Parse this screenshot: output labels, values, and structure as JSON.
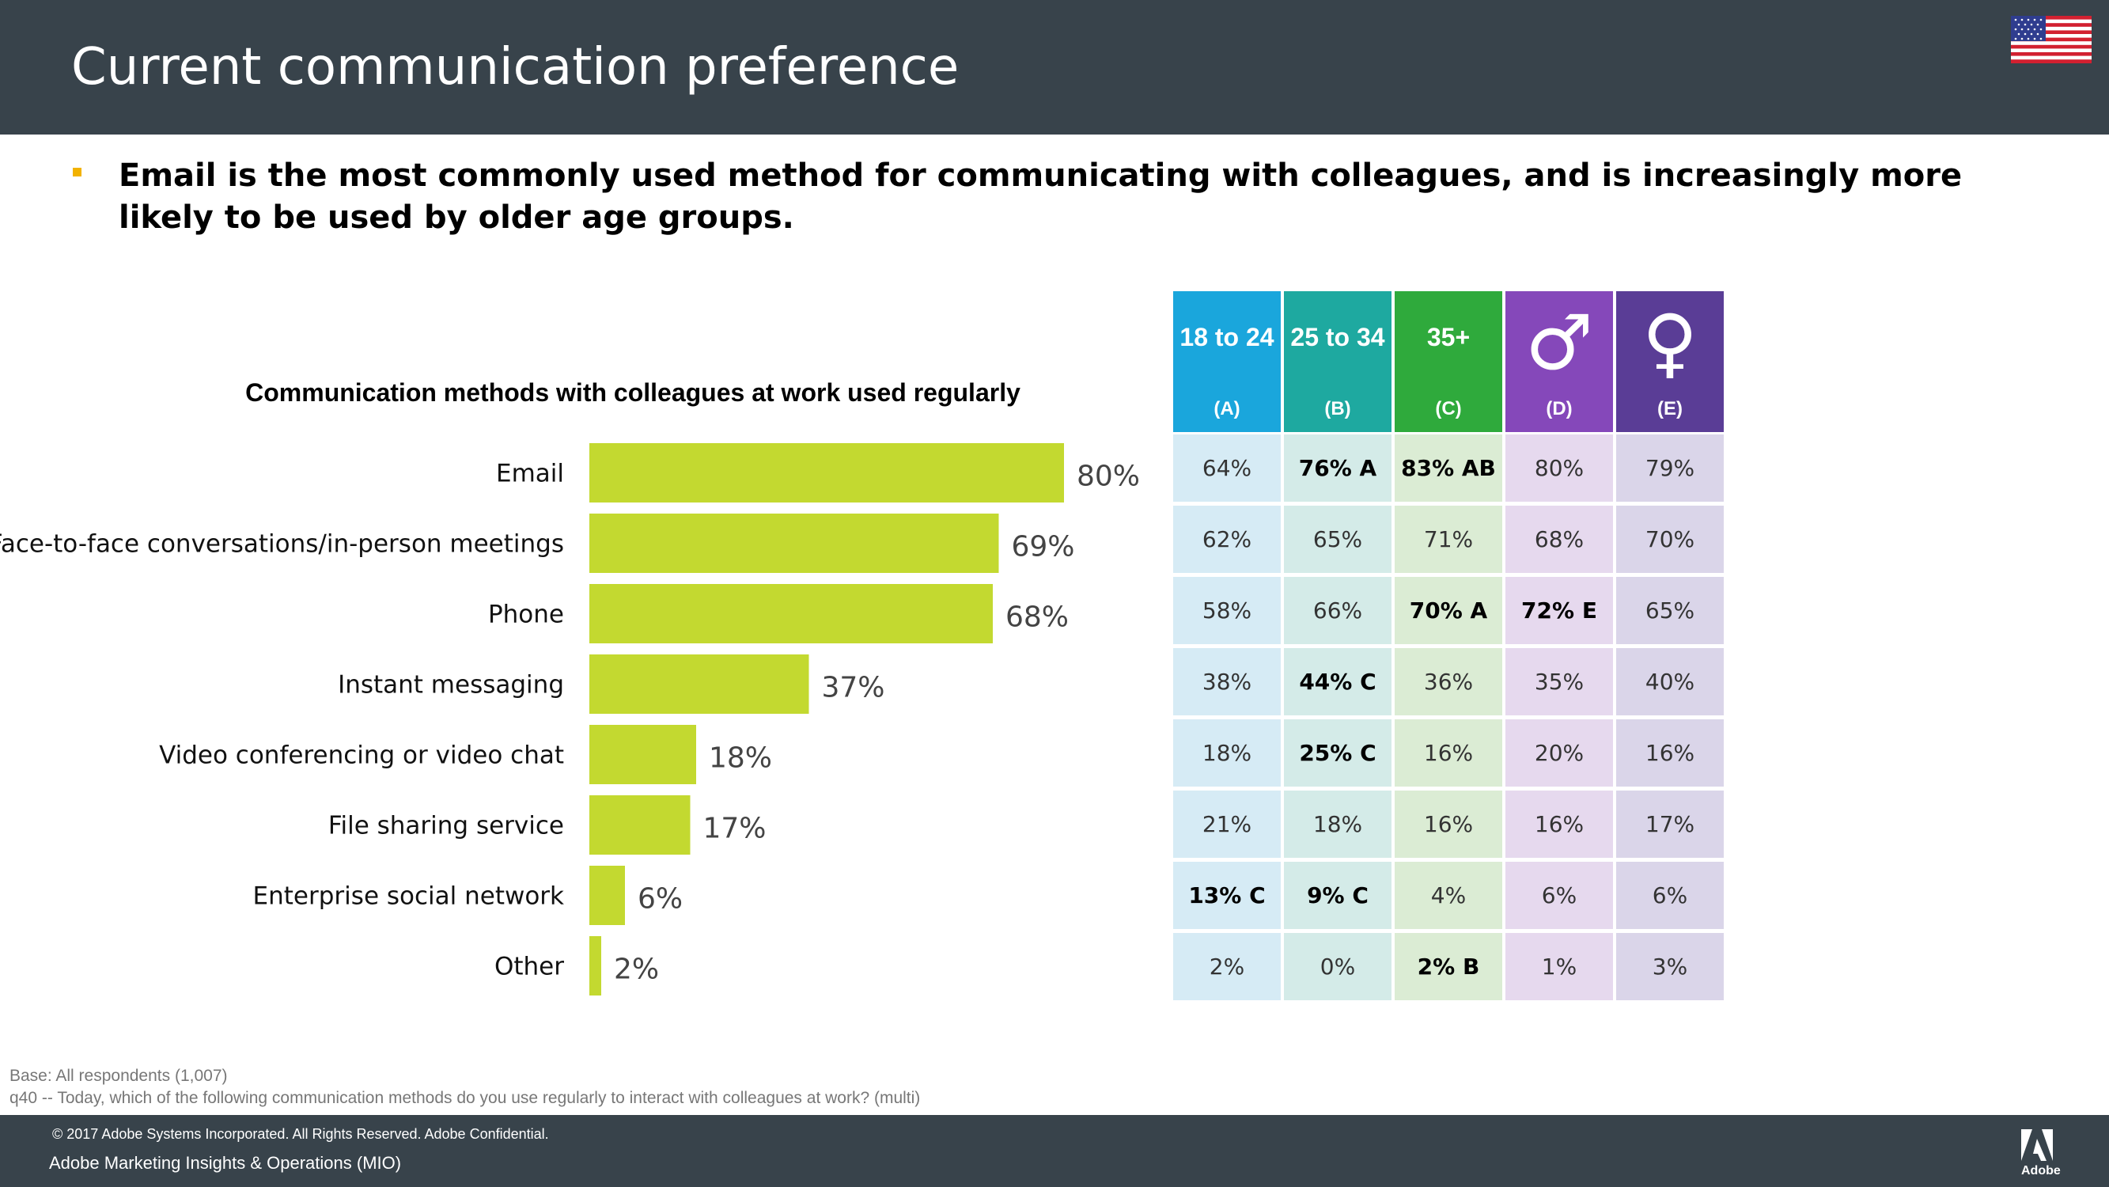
{
  "header": {
    "title": "Current communication preference",
    "flag_icon": "us-flag-icon"
  },
  "headline": "Email is the most commonly used method for communicating with colleagues, and is increasingly more likely to be used by older age groups.",
  "chart_data": {
    "type": "bar",
    "orientation": "horizontal",
    "title": "Communication methods with colleagues at work used regularly",
    "categories": [
      "Email",
      "Face-to-face conversations/in-person meetings",
      "Phone",
      "Instant messaging",
      "Video conferencing or video chat",
      "File sharing service",
      "Enterprise social network",
      "Other"
    ],
    "values": [
      80,
      69,
      68,
      37,
      18,
      17,
      6,
      2
    ],
    "value_labels": [
      "80%",
      "69%",
      "68%",
      "37%",
      "18%",
      "17%",
      "6%",
      "2%"
    ],
    "xlim": [
      0,
      100
    ],
    "grid": false,
    "bar_color": "#c3d930"
  },
  "table": {
    "columns": [
      {
        "label": "18 to 24",
        "letter": "(A)",
        "color": "#1aa6dc",
        "cell_color": "#d6ebf5"
      },
      {
        "label": "25 to 34",
        "letter": "(B)",
        "color": "#1ea9a0",
        "cell_color": "#d4ebe8"
      },
      {
        "label": "35+",
        "letter": "(C)",
        "color": "#2faa3c",
        "cell_color": "#dbecd4"
      },
      {
        "label": "",
        "icon": "male-icon",
        "glyph": "♂",
        "letter": "(D)",
        "color": "#8548ba",
        "cell_color": "#e6d9ee"
      },
      {
        "label": "",
        "icon": "female-icon",
        "glyph": "♀",
        "letter": "(E)",
        "color": "#5a3d96",
        "cell_color": "#dad5e9"
      }
    ],
    "rows": [
      [
        {
          "v": "64%"
        },
        {
          "v": "76% A",
          "b": true
        },
        {
          "v": "83% AB",
          "b": true
        },
        {
          "v": "80%"
        },
        {
          "v": "79%"
        }
      ],
      [
        {
          "v": "62%"
        },
        {
          "v": "65%"
        },
        {
          "v": "71%"
        },
        {
          "v": "68%"
        },
        {
          "v": "70%"
        }
      ],
      [
        {
          "v": "58%"
        },
        {
          "v": "66%"
        },
        {
          "v": "70% A",
          "b": true
        },
        {
          "v": "72% E",
          "b": true
        },
        {
          "v": "65%"
        }
      ],
      [
        {
          "v": "38%"
        },
        {
          "v": "44% C",
          "b": true
        },
        {
          "v": "36%"
        },
        {
          "v": "35%"
        },
        {
          "v": "40%"
        }
      ],
      [
        {
          "v": "18%"
        },
        {
          "v": "25% C",
          "b": true
        },
        {
          "v": "16%"
        },
        {
          "v": "20%"
        },
        {
          "v": "16%"
        }
      ],
      [
        {
          "v": "21%"
        },
        {
          "v": "18%"
        },
        {
          "v": "16%"
        },
        {
          "v": "16%"
        },
        {
          "v": "17%"
        }
      ],
      [
        {
          "v": "13% C",
          "b": true
        },
        {
          "v": "9% C",
          "b": true
        },
        {
          "v": "4%"
        },
        {
          "v": "6%"
        },
        {
          "v": "6%"
        }
      ],
      [
        {
          "v": "2%"
        },
        {
          "v": "0%"
        },
        {
          "v": "2% B",
          "b": true
        },
        {
          "v": "1%"
        },
        {
          "v": "3%"
        }
      ]
    ]
  },
  "notes": {
    "base": "Base: All respondents (1,007)",
    "question": "q40 -- Today, which of the following communication methods do you use regularly to interact with colleagues at work? (multi)"
  },
  "footer": {
    "copyright": "© 2017 Adobe Systems Incorporated.  All Rights Reserved.  Adobe Confidential.",
    "department": "Adobe Marketing Insights & Operations (MIO)",
    "logo_icon": "adobe-logo-icon",
    "logo_text": "Adobe"
  }
}
